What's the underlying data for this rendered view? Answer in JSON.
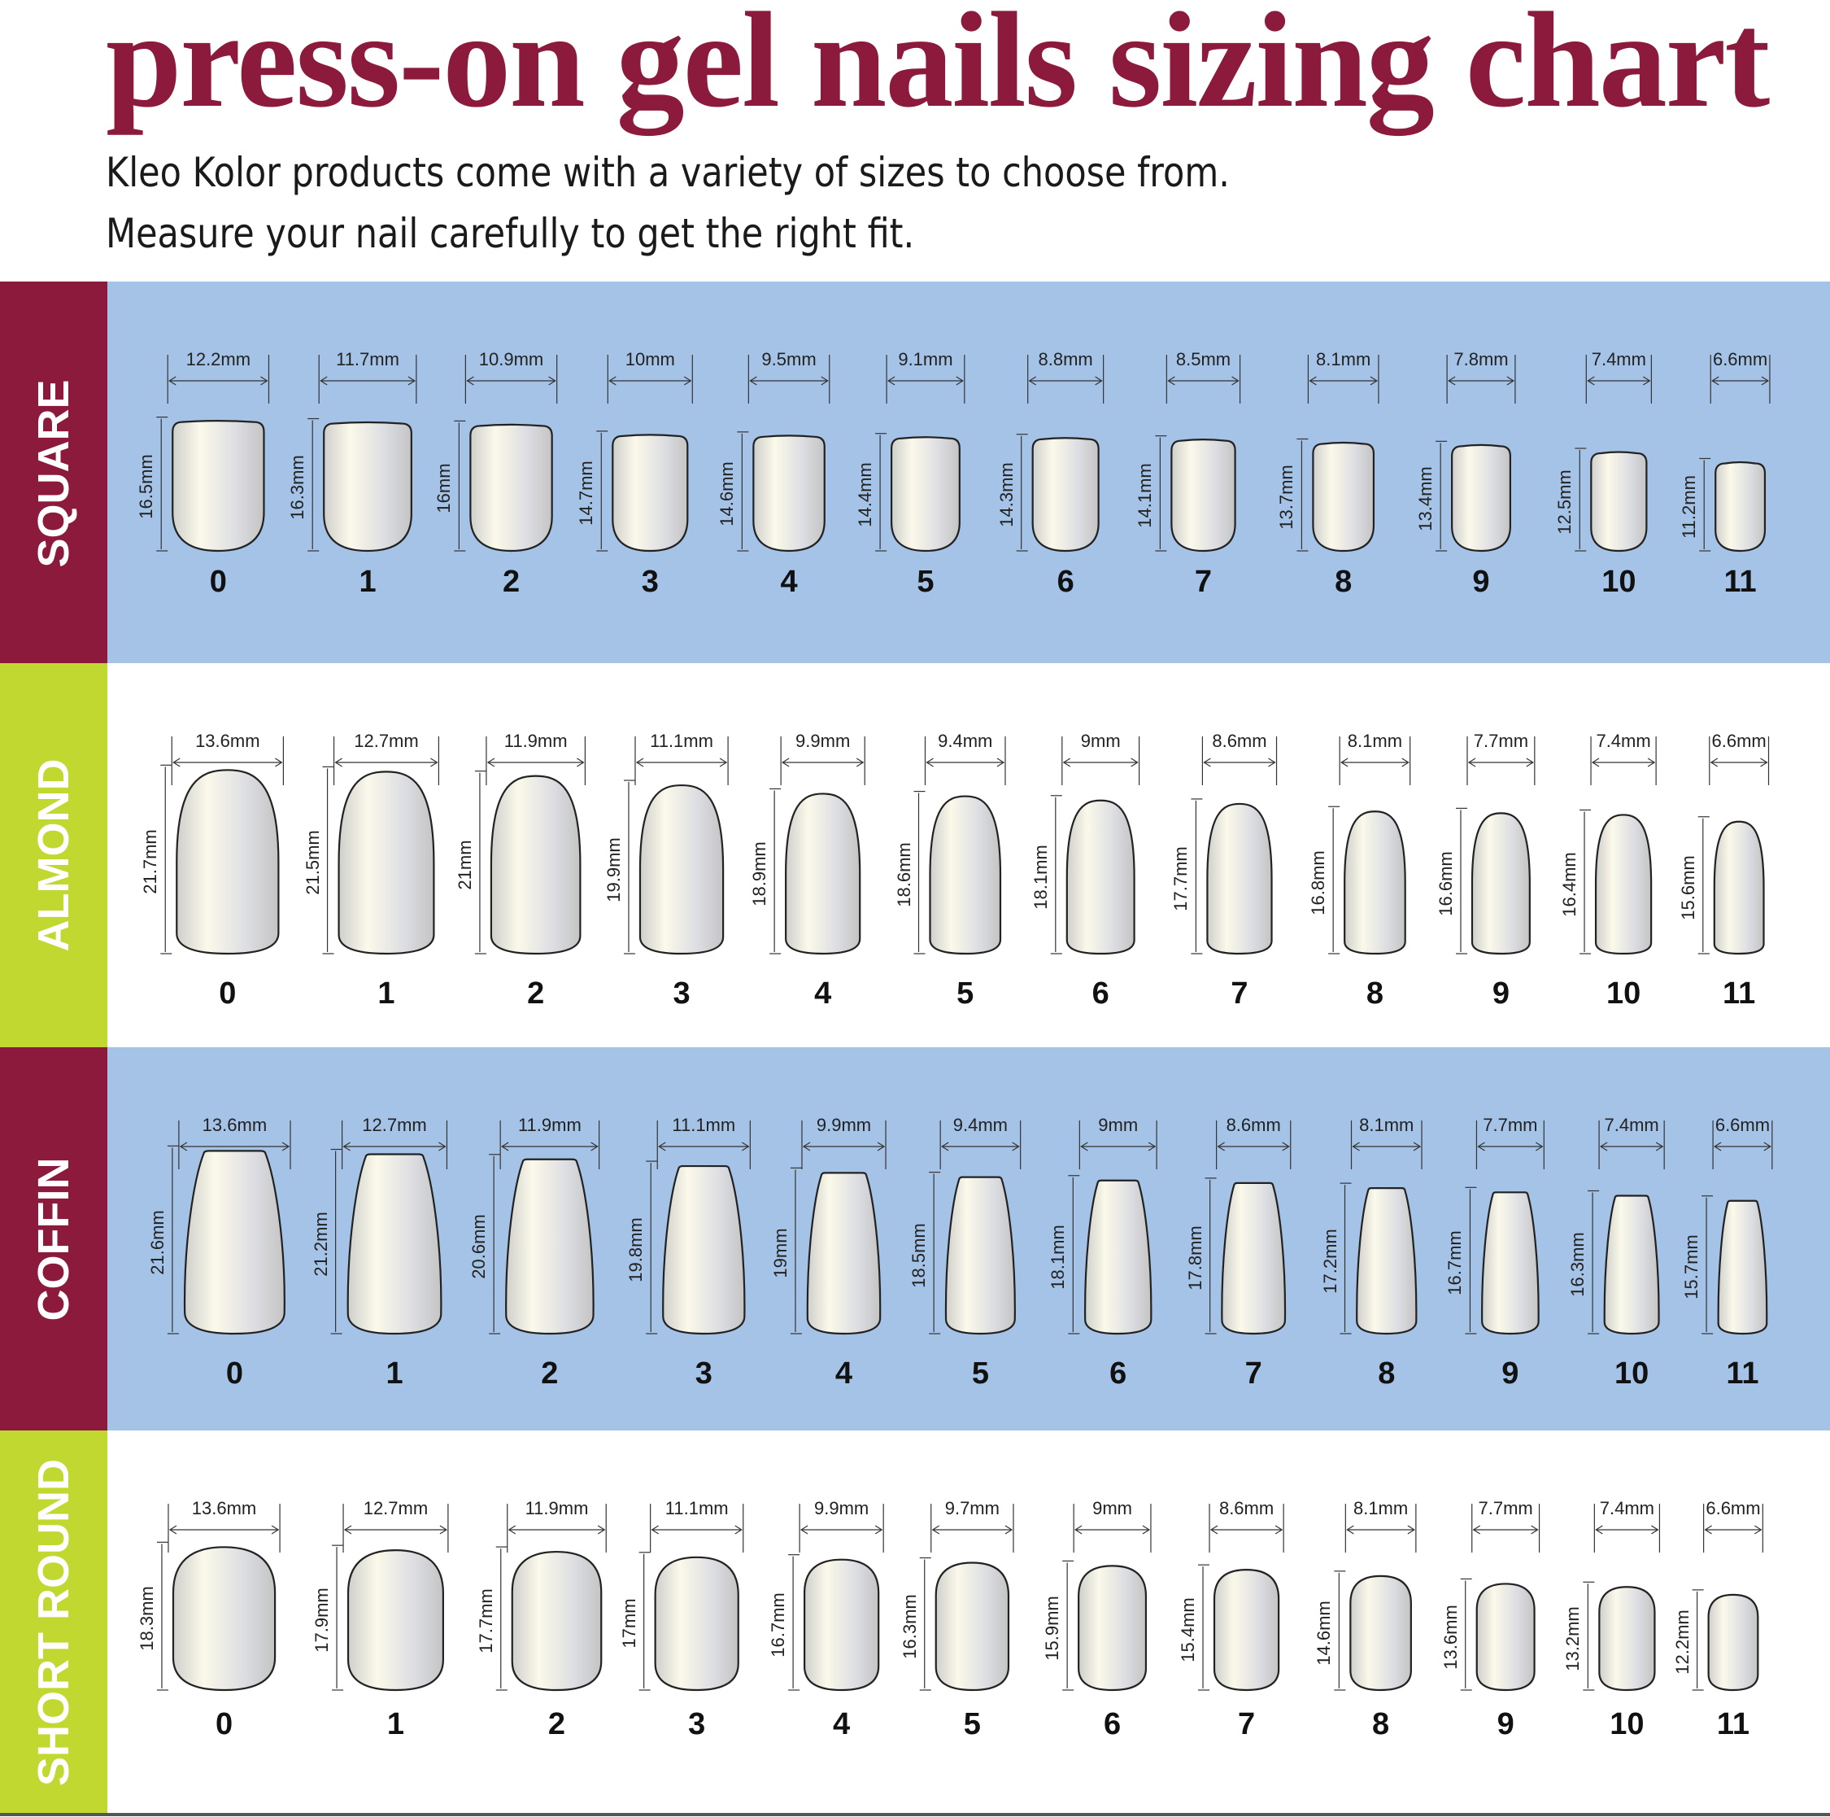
{
  "title": "press-on gel nails sizing chart",
  "subtitle_lines": [
    "Kleo Kolor products come with a variety of sizes to choose from.",
    "Measure your nail carefully to get the right fit."
  ],
  "colors": {
    "maroon": "#8b1a3c",
    "lime": "#c0d82f",
    "blue": "#a4c3e6",
    "white": "#ffffff"
  },
  "sections": [
    {
      "name": "SQUARE",
      "shape": "square",
      "sizes": [
        "0",
        "1",
        "2",
        "3",
        "4",
        "5",
        "6",
        "7",
        "8",
        "9",
        "10",
        "11"
      ],
      "widths": [
        "12.2mm",
        "11.7mm",
        "10.9mm",
        "10mm",
        "9.5mm",
        "9.1mm",
        "8.8mm",
        "8.5mm",
        "8.1mm",
        "7.8mm",
        "7.4mm",
        "6.6mm"
      ],
      "lengths": [
        "16.5mm",
        "16.3mm",
        "16mm",
        "14.7mm",
        "14.6mm",
        "14.4mm",
        "14.3mm",
        "14.1mm",
        "13.7mm",
        "13.4mm",
        "12.5mm",
        "11.2mm"
      ]
    },
    {
      "name": "ALMOND",
      "shape": "almond",
      "sizes": [
        "0",
        "1",
        "2",
        "3",
        "4",
        "5",
        "6",
        "7",
        "8",
        "9",
        "10",
        "11"
      ],
      "widths": [
        "13.6mm",
        "12.7mm",
        "11.9mm",
        "11.1mm",
        "9.9mm",
        "9.4mm",
        "9mm",
        "8.6mm",
        "8.1mm",
        "7.7mm",
        "7.4mm",
        "6.6mm"
      ],
      "lengths": [
        "21.7mm",
        "21.5mm",
        "21mm",
        "19.9mm",
        "18.9mm",
        "18.6mm",
        "18.1mm",
        "17.7mm",
        "16.8mm",
        "16.6mm",
        "16.4mm",
        "15.6mm"
      ]
    },
    {
      "name": "COFFIN",
      "shape": "coffin",
      "sizes": [
        "0",
        "1",
        "2",
        "3",
        "4",
        "5",
        "6",
        "7",
        "8",
        "9",
        "10",
        "11"
      ],
      "widths": [
        "13.6mm",
        "12.7mm",
        "11.9mm",
        "11.1mm",
        "9.9mm",
        "9.4mm",
        "9mm",
        "8.6mm",
        "8.1mm",
        "7.7mm",
        "7.4mm",
        "6.6mm"
      ],
      "lengths": [
        "21.6mm",
        "21.2mm",
        "20.6mm",
        "19.8mm",
        "19mm",
        "18.5mm",
        "18.1mm",
        "17.8mm",
        "17.2mm",
        "16.7mm",
        "16.3mm",
        "15.7mm"
      ]
    },
    {
      "name": "SHORT ROUND",
      "shape": "round",
      "sizes": [
        "0",
        "1",
        "2",
        "3",
        "4",
        "5",
        "6",
        "7",
        "8",
        "9",
        "10",
        "11"
      ],
      "widths": [
        "13.6mm",
        "12.7mm",
        "11.9mm",
        "11.1mm",
        "9.9mm",
        "9.7mm",
        "9mm",
        "8.6mm",
        "8.1mm",
        "7.7mm",
        "7.4mm",
        "6.6mm"
      ],
      "lengths": [
        "18.3mm",
        "17.9mm",
        "17.7mm",
        "17mm",
        "16.7mm",
        "16.3mm",
        "15.9mm",
        "15.4mm",
        "14.6mm",
        "13.6mm",
        "13.2mm",
        "12.2mm"
      ]
    }
  ]
}
